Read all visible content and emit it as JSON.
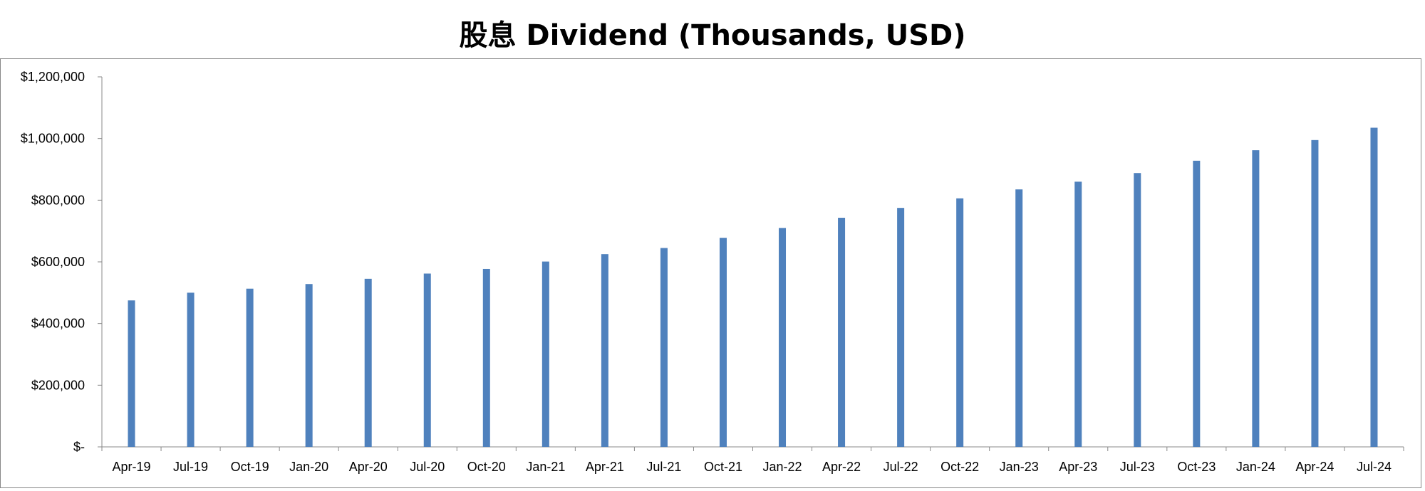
{
  "chart_data": {
    "type": "bar",
    "title": "股息 Dividend (Thousands, USD)",
    "xlabel": "",
    "ylabel": "",
    "categories": [
      "Apr-19",
      "Jul-19",
      "Oct-19",
      "Jan-20",
      "Apr-20",
      "Jul-20",
      "Oct-20",
      "Jan-21",
      "Apr-21",
      "Jul-21",
      "Oct-21",
      "Jan-22",
      "Apr-22",
      "Jul-22",
      "Oct-22",
      "Jan-23",
      "Apr-23",
      "Jul-23",
      "Oct-23",
      "Jan-24",
      "Apr-24",
      "Jul-24"
    ],
    "values": [
      475000,
      500000,
      513000,
      528000,
      545000,
      562000,
      577000,
      601000,
      625000,
      645000,
      678000,
      710000,
      743000,
      775000,
      806000,
      835000,
      860000,
      888000,
      928000,
      962000,
      995000,
      1035000
    ],
    "ylim": [
      0,
      1200000
    ],
    "yticks": [
      0,
      200000,
      400000,
      600000,
      800000,
      1000000,
      1200000
    ],
    "ytick_labels": [
      "$-",
      "$200,000",
      "$400,000",
      "$600,000",
      "$800,000",
      "$1,000,000",
      "$1,200,000"
    ],
    "grid": false,
    "legend": "none",
    "bar_color": "#4f81bd"
  }
}
